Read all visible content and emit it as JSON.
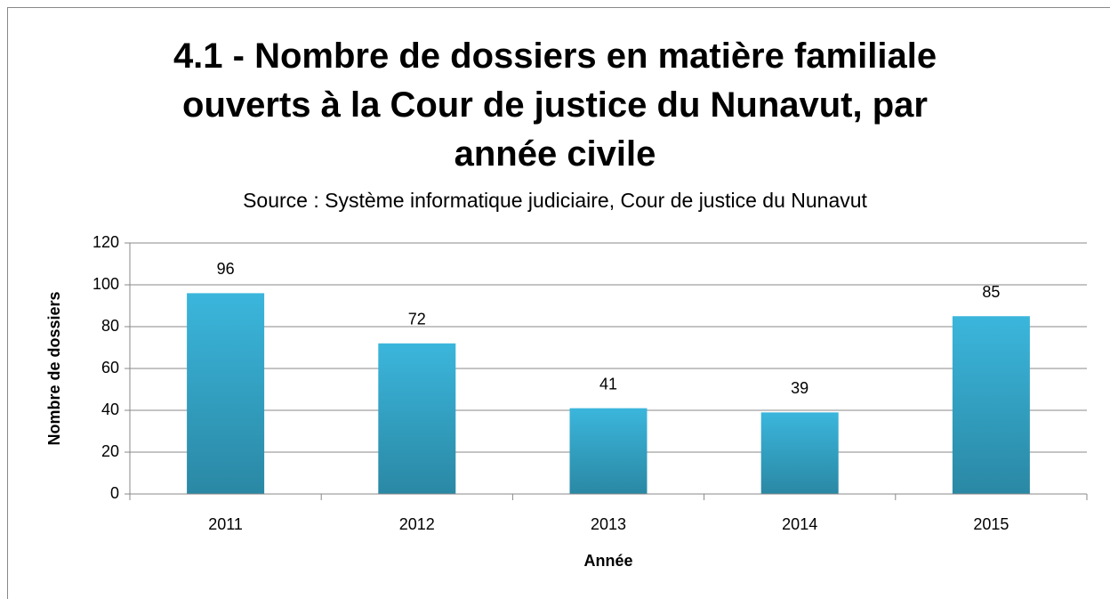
{
  "chart_data": {
    "type": "bar",
    "title": "4.1 - Nombre de dossiers en matière familiale ouverts à la Cour de justice du Nunavut,  par année civile",
    "subtitle": "Source : Système informatique judiciaire, Cour de justice du Nunavut",
    "x_label": "Année",
    "y_label": "Nombre de dossiers",
    "categories": [
      "2011",
      "2012",
      "2013",
      "2014",
      "2015"
    ],
    "values": [
      96,
      72,
      41,
      39,
      85
    ],
    "color": "#35afd4",
    "ylim": [
      0,
      120
    ],
    "yticks": [
      0,
      20,
      40,
      60,
      80,
      100,
      120
    ],
    "grid": true
  }
}
